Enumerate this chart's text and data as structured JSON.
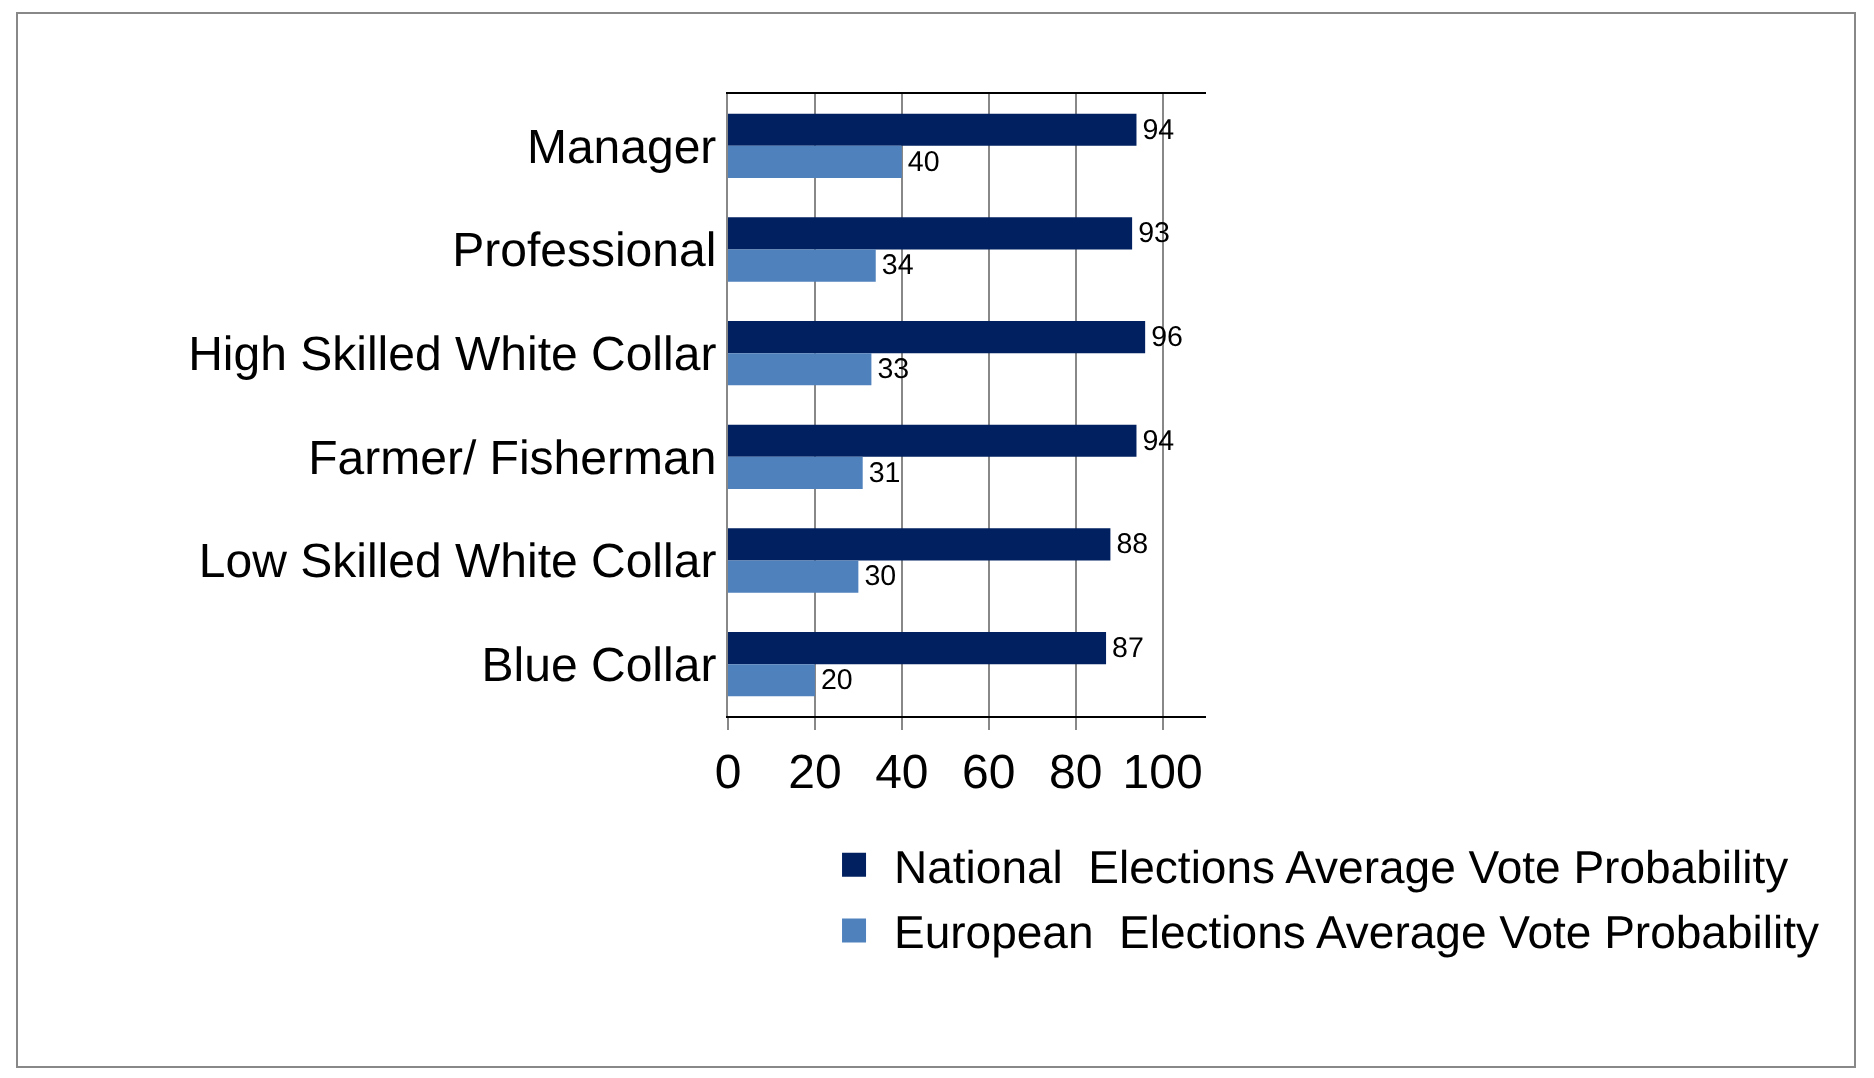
{
  "chart_data": {
    "type": "bar",
    "orientation": "horizontal",
    "categories": [
      "Manager",
      "Professional",
      "High Skilled White Collar",
      "Farmer/ Fisherman",
      "Low Skilled White Collar",
      "Blue Collar"
    ],
    "series": [
      {
        "name": "National  Elections Average Vote Probability",
        "color": "#002060",
        "values": [
          94,
          93,
          96,
          94,
          88,
          87
        ]
      },
      {
        "name": "European  Elections Average Vote Probability",
        "color": "#4f81bd",
        "values": [
          40,
          34,
          33,
          31,
          30,
          20
        ]
      }
    ],
    "xlim": [
      0,
      110
    ],
    "xticks": [
      0,
      20,
      40,
      60,
      80,
      100
    ],
    "grid": "x",
    "legend": "bottom",
    "data_labels": true
  }
}
